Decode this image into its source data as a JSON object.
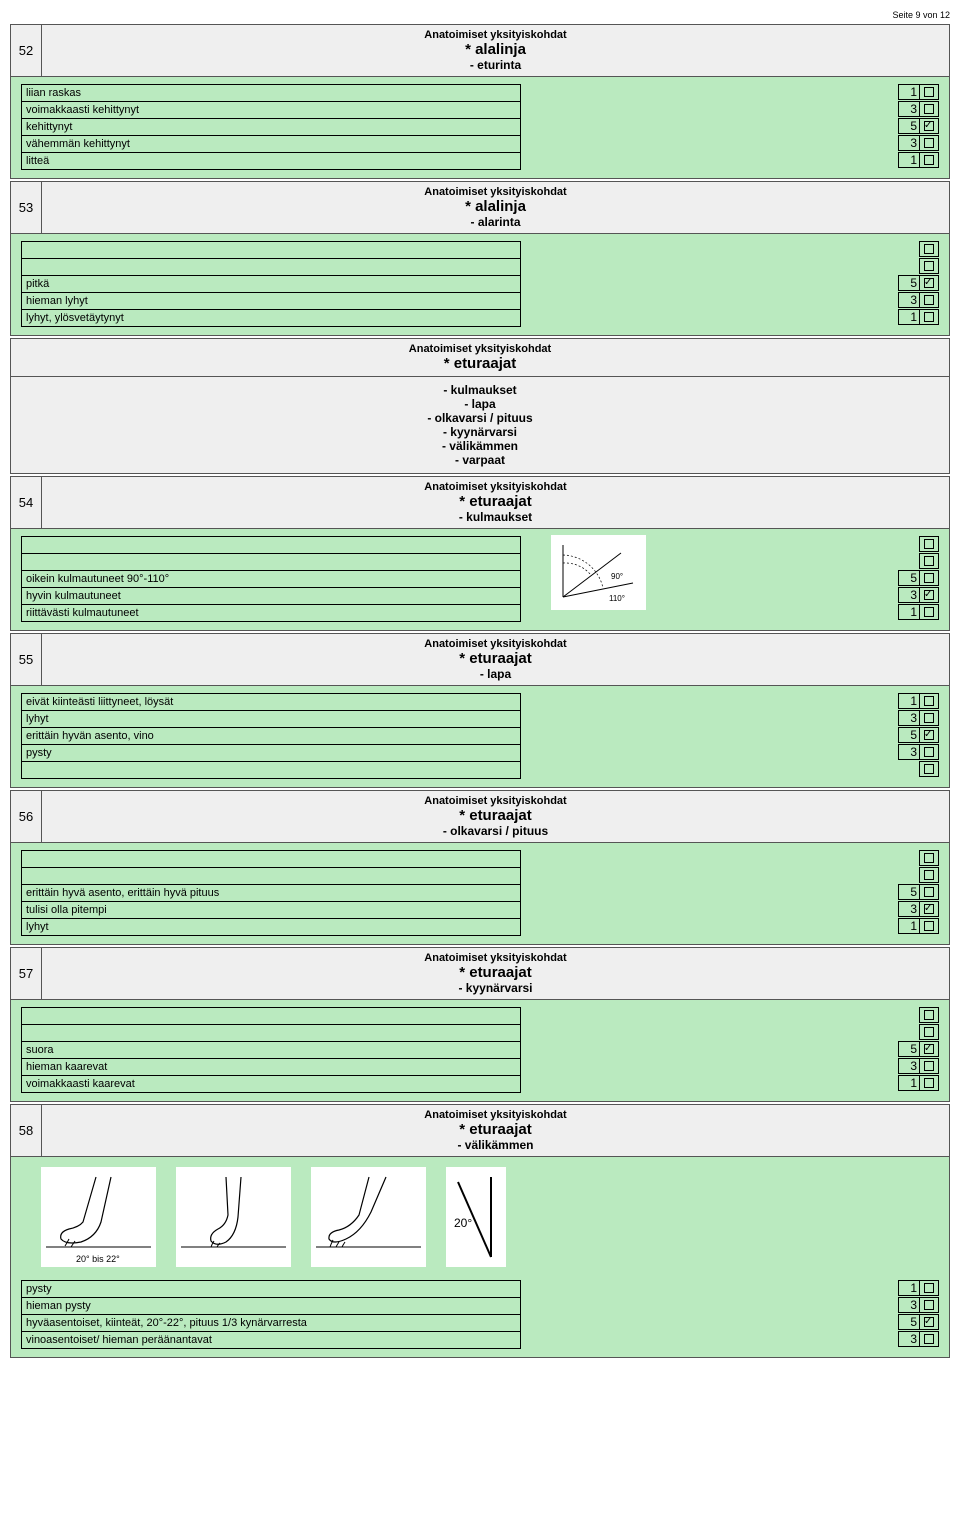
{
  "page_info": "Seite 9 von 12",
  "supertitle": "Anatoimiset yksityiskohdat",
  "sections": {
    "s52": {
      "num": "52",
      "title": "* alalinja",
      "subtitle": "- eturinta",
      "rows": [
        {
          "label": "liian raskas",
          "score": "1",
          "checked": false
        },
        {
          "label": "voimakkaasti kehittynyt",
          "score": "3",
          "checked": false
        },
        {
          "label": "kehittynyt",
          "score": "5",
          "checked": true
        },
        {
          "label": "vähemmän kehittynyt",
          "score": "3",
          "checked": false
        },
        {
          "label": "litteä",
          "score": "1",
          "checked": false
        }
      ]
    },
    "s53": {
      "num": "53",
      "title": "* alalinja",
      "subtitle": "- alarinta",
      "rows": [
        {
          "label": "",
          "score": "",
          "checked": false
        },
        {
          "label": "",
          "score": "",
          "checked": false
        },
        {
          "label": "pitkä",
          "score": "5",
          "checked": true
        },
        {
          "label": "hieman lyhyt",
          "score": "3",
          "checked": false
        },
        {
          "label": "lyhyt, ylösvetäytynyt",
          "score": "1",
          "checked": false
        }
      ]
    },
    "eturaajat_list": {
      "title": "* eturaajat",
      "items": [
        "- kulmaukset",
        "- lapa",
        "- olkavarsi / pituus",
        "- kyynärvarsi",
        "- välikämmen",
        "- varpaat"
      ]
    },
    "s54": {
      "num": "54",
      "title": "* eturaajat",
      "subtitle": "- kulmaukset",
      "rows": [
        {
          "label": "",
          "score": "",
          "checked": false
        },
        {
          "label": "",
          "score": "",
          "checked": false
        },
        {
          "label": "oikein kulmautuneet 90°-110°",
          "score": "5",
          "checked": false
        },
        {
          "label": "hyvin kulmautuneet",
          "score": "3",
          "checked": true
        },
        {
          "label": "riittävästi kulmautuneet",
          "score": "1",
          "checked": false
        }
      ],
      "diagram_labels": {
        "a": "90°",
        "b": "110°"
      }
    },
    "s55": {
      "num": "55",
      "title": "* eturaajat",
      "subtitle": "- lapa",
      "rows": [
        {
          "label": "eivät kiinteästi liittyneet, löysät",
          "score": "1",
          "checked": false
        },
        {
          "label": "lyhyt",
          "score": "3",
          "checked": false
        },
        {
          "label": "erittäin hyvän asento, vino",
          "score": "5",
          "checked": true
        },
        {
          "label": "pysty",
          "score": "3",
          "checked": false
        },
        {
          "label": "",
          "score": "",
          "checked": false
        }
      ]
    },
    "s56": {
      "num": "56",
      "title": "* eturaajat",
      "subtitle": "- olkavarsi / pituus",
      "rows": [
        {
          "label": "",
          "score": "",
          "checked": false
        },
        {
          "label": "",
          "score": "",
          "checked": false
        },
        {
          "label": "erittäin hyvä asento, erittäin hyvä pituus",
          "score": "5",
          "checked": false
        },
        {
          "label": "tulisi olla pitempi",
          "score": "3",
          "checked": true
        },
        {
          "label": "lyhyt",
          "score": "1",
          "checked": false
        }
      ]
    },
    "s57": {
      "num": "57",
      "title": "* eturaajat",
      "subtitle": "- kyynärvarsi",
      "rows": [
        {
          "label": "",
          "score": "",
          "checked": false
        },
        {
          "label": "",
          "score": "",
          "checked": false
        },
        {
          "label": "suora",
          "score": "5",
          "checked": true
        },
        {
          "label": "hieman kaarevat",
          "score": "3",
          "checked": false
        },
        {
          "label": "voimakkaasti kaarevat",
          "score": "1",
          "checked": false
        }
      ]
    },
    "s58": {
      "num": "58",
      "title": "* eturaajat",
      "subtitle": "- välikämmen",
      "paw_caption": "20° bis 22°",
      "angle_label": "20°",
      "rows": [
        {
          "label": "pysty",
          "score": "1",
          "checked": false
        },
        {
          "label": "hieman pysty",
          "score": "3",
          "checked": false
        },
        {
          "label": "hyväasentoiset, kiinteät, 20°-22°, pituus 1/3 kynärvarresta",
          "score": "5",
          "checked": true
        },
        {
          "label": "vinoasentoiset/ hieman peräänantavat",
          "score": "3",
          "checked": false
        }
      ]
    }
  },
  "colors": {
    "green": "#baeabf",
    "grey": "#efefef",
    "border": "#555555"
  }
}
